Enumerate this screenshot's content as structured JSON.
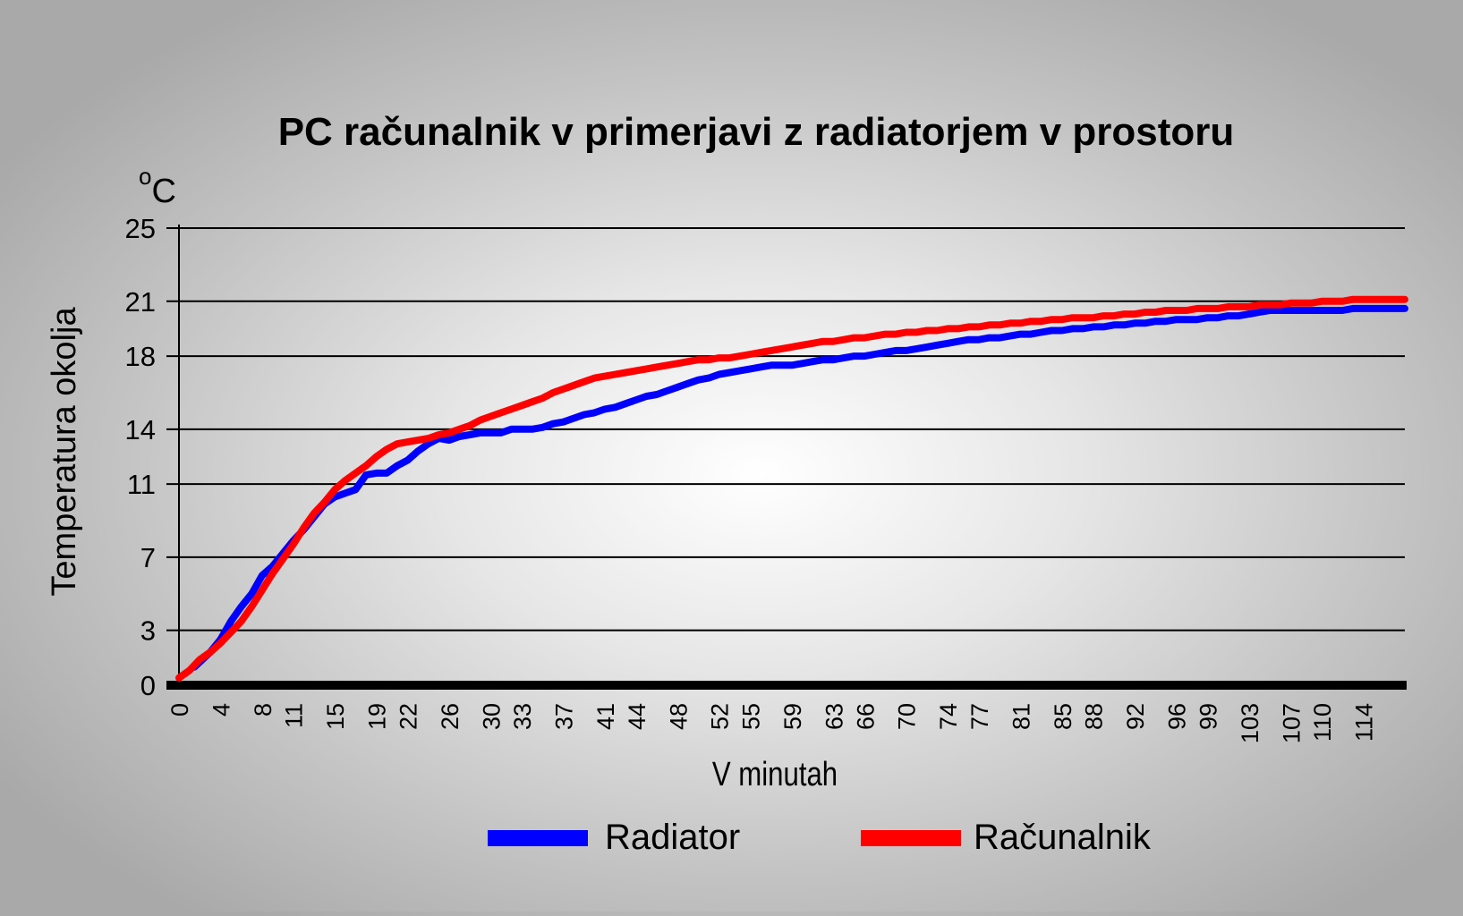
{
  "chart_data": {
    "type": "line",
    "title": "PC računalnik v primerjavi z radiatorjem v prostoru",
    "unit": {
      "sup": "o",
      "text": "C"
    },
    "ylabel": "Temperatura okolja",
    "xlabel": "V minutah",
    "ylim": [
      0,
      25
    ],
    "xlim": [
      0,
      118
    ],
    "y_ticks": [
      0,
      3,
      7,
      11,
      14,
      18,
      21,
      25
    ],
    "x_ticks": [
      0,
      4,
      8,
      11,
      15,
      19,
      22,
      26,
      30,
      33,
      37,
      41,
      44,
      48,
      52,
      55,
      59,
      63,
      66,
      70,
      74,
      77,
      81,
      85,
      88,
      92,
      96,
      99,
      103,
      107,
      110,
      114
    ],
    "grid": true,
    "legend_position": "bottom",
    "series": [
      {
        "name": "Radiator",
        "color": "#0000ff",
        "points": [
          [
            1.5,
            1.0
          ],
          [
            3,
            1.8
          ],
          [
            4,
            2.5
          ],
          [
            5,
            3.5
          ],
          [
            6,
            4.3
          ],
          [
            7,
            5.0
          ],
          [
            8,
            6.0
          ],
          [
            9,
            6.5
          ],
          [
            10,
            7.2
          ],
          [
            11,
            7.9
          ],
          [
            12,
            8.5
          ],
          [
            13,
            9.2
          ],
          [
            14,
            9.9
          ],
          [
            15,
            10.3
          ],
          [
            16,
            10.5
          ],
          [
            17,
            10.7
          ],
          [
            18,
            11.5
          ],
          [
            19,
            11.6
          ],
          [
            20,
            11.6
          ],
          [
            21,
            12.0
          ],
          [
            22,
            12.3
          ],
          [
            23,
            12.8
          ],
          [
            24,
            13.2
          ],
          [
            25,
            13.5
          ],
          [
            26,
            13.4
          ],
          [
            27,
            13.6
          ],
          [
            28,
            13.7
          ],
          [
            29,
            13.8
          ],
          [
            30,
            13.8
          ],
          [
            31,
            13.8
          ],
          [
            32,
            14.0
          ],
          [
            33,
            14.0
          ],
          [
            34,
            14.0
          ],
          [
            35,
            14.1
          ],
          [
            36,
            14.3
          ],
          [
            37,
            14.4
          ],
          [
            38,
            14.6
          ],
          [
            39,
            14.8
          ],
          [
            40,
            14.9
          ],
          [
            41,
            15.1
          ],
          [
            42,
            15.2
          ],
          [
            43,
            15.4
          ],
          [
            44,
            15.6
          ],
          [
            45,
            15.8
          ],
          [
            46,
            15.9
          ],
          [
            47,
            16.1
          ],
          [
            48,
            16.3
          ],
          [
            49,
            16.5
          ],
          [
            50,
            16.7
          ],
          [
            51,
            16.8
          ],
          [
            52,
            17.0
          ],
          [
            53,
            17.1
          ],
          [
            54,
            17.2
          ],
          [
            55,
            17.3
          ],
          [
            56,
            17.4
          ],
          [
            57,
            17.5
          ],
          [
            58,
            17.5
          ],
          [
            59,
            17.5
          ],
          [
            60,
            17.6
          ],
          [
            61,
            17.7
          ],
          [
            62,
            17.8
          ],
          [
            63,
            17.8
          ],
          [
            64,
            17.9
          ],
          [
            65,
            18.0
          ],
          [
            66,
            18.0
          ],
          [
            67,
            18.1
          ],
          [
            68,
            18.2
          ],
          [
            69,
            18.3
          ],
          [
            70,
            18.3
          ],
          [
            71,
            18.4
          ],
          [
            72,
            18.5
          ],
          [
            73,
            18.6
          ],
          [
            74,
            18.7
          ],
          [
            75,
            18.8
          ],
          [
            76,
            18.9
          ],
          [
            77,
            18.9
          ],
          [
            78,
            19.0
          ],
          [
            79,
            19.0
          ],
          [
            80,
            19.1
          ],
          [
            81,
            19.2
          ],
          [
            82,
            19.2
          ],
          [
            83,
            19.3
          ],
          [
            84,
            19.4
          ],
          [
            85,
            19.4
          ],
          [
            86,
            19.5
          ],
          [
            87,
            19.5
          ],
          [
            88,
            19.6
          ],
          [
            89,
            19.6
          ],
          [
            90,
            19.7
          ],
          [
            91,
            19.7
          ],
          [
            92,
            19.8
          ],
          [
            93,
            19.8
          ],
          [
            94,
            19.9
          ],
          [
            95,
            19.9
          ],
          [
            96,
            20.0
          ],
          [
            97,
            20.0
          ],
          [
            98,
            20.0
          ],
          [
            99,
            20.1
          ],
          [
            100,
            20.1
          ],
          [
            101,
            20.2
          ],
          [
            102,
            20.2
          ],
          [
            103,
            20.3
          ],
          [
            104,
            20.4
          ],
          [
            105,
            20.5
          ],
          [
            106,
            20.5
          ],
          [
            107,
            20.5
          ],
          [
            108,
            20.5
          ],
          [
            109,
            20.5
          ],
          [
            110,
            20.5
          ],
          [
            111,
            20.5
          ],
          [
            112,
            20.5
          ],
          [
            113,
            20.6
          ],
          [
            114,
            20.6
          ],
          [
            115,
            20.6
          ],
          [
            116,
            20.6
          ],
          [
            118,
            20.6
          ]
        ]
      },
      {
        "name": "Računalnik",
        "color": "#ff0000",
        "points": [
          [
            0,
            0.4
          ],
          [
            1,
            0.8
          ],
          [
            2,
            1.4
          ],
          [
            3,
            1.8
          ],
          [
            4,
            2.3
          ],
          [
            5,
            2.9
          ],
          [
            6,
            3.5
          ],
          [
            7,
            4.3
          ],
          [
            8,
            5.2
          ],
          [
            9,
            6.1
          ],
          [
            10,
            6.9
          ],
          [
            11,
            7.7
          ],
          [
            12,
            8.6
          ],
          [
            13,
            9.4
          ],
          [
            14,
            10.0
          ],
          [
            15,
            10.7
          ],
          [
            16,
            11.2
          ],
          [
            17,
            11.6
          ],
          [
            18,
            12.0
          ],
          [
            19,
            12.5
          ],
          [
            20,
            12.9
          ],
          [
            21,
            13.2
          ],
          [
            22,
            13.3
          ],
          [
            23,
            13.4
          ],
          [
            24,
            13.5
          ],
          [
            25,
            13.7
          ],
          [
            26,
            13.8
          ],
          [
            27,
            14.0
          ],
          [
            28,
            14.2
          ],
          [
            29,
            14.5
          ],
          [
            30,
            14.7
          ],
          [
            31,
            14.9
          ],
          [
            32,
            15.1
          ],
          [
            33,
            15.3
          ],
          [
            34,
            15.5
          ],
          [
            35,
            15.7
          ],
          [
            36,
            16.0
          ],
          [
            37,
            16.2
          ],
          [
            38,
            16.4
          ],
          [
            39,
            16.6
          ],
          [
            40,
            16.8
          ],
          [
            41,
            16.9
          ],
          [
            42,
            17.0
          ],
          [
            43,
            17.1
          ],
          [
            44,
            17.2
          ],
          [
            45,
            17.3
          ],
          [
            46,
            17.4
          ],
          [
            47,
            17.5
          ],
          [
            48,
            17.6
          ],
          [
            49,
            17.7
          ],
          [
            50,
            17.8
          ],
          [
            51,
            17.8
          ],
          [
            52,
            17.9
          ],
          [
            53,
            17.9
          ],
          [
            54,
            18.0
          ],
          [
            55,
            18.1
          ],
          [
            56,
            18.2
          ],
          [
            57,
            18.3
          ],
          [
            58,
            18.4
          ],
          [
            59,
            18.5
          ],
          [
            60,
            18.6
          ],
          [
            61,
            18.7
          ],
          [
            62,
            18.8
          ],
          [
            63,
            18.8
          ],
          [
            64,
            18.9
          ],
          [
            65,
            19.0
          ],
          [
            66,
            19.0
          ],
          [
            67,
            19.1
          ],
          [
            68,
            19.2
          ],
          [
            69,
            19.2
          ],
          [
            70,
            19.3
          ],
          [
            71,
            19.3
          ],
          [
            72,
            19.4
          ],
          [
            73,
            19.4
          ],
          [
            74,
            19.5
          ],
          [
            75,
            19.5
          ],
          [
            76,
            19.6
          ],
          [
            77,
            19.6
          ],
          [
            78,
            19.7
          ],
          [
            79,
            19.7
          ],
          [
            80,
            19.8
          ],
          [
            81,
            19.8
          ],
          [
            82,
            19.9
          ],
          [
            83,
            19.9
          ],
          [
            84,
            20.0
          ],
          [
            85,
            20.0
          ],
          [
            86,
            20.1
          ],
          [
            87,
            20.1
          ],
          [
            88,
            20.1
          ],
          [
            89,
            20.2
          ],
          [
            90,
            20.2
          ],
          [
            91,
            20.3
          ],
          [
            92,
            20.3
          ],
          [
            93,
            20.4
          ],
          [
            94,
            20.4
          ],
          [
            95,
            20.5
          ],
          [
            96,
            20.5
          ],
          [
            97,
            20.5
          ],
          [
            98,
            20.6
          ],
          [
            99,
            20.6
          ],
          [
            100,
            20.6
          ],
          [
            101,
            20.7
          ],
          [
            102,
            20.7
          ],
          [
            103,
            20.7
          ],
          [
            104,
            20.8
          ],
          [
            105,
            20.8
          ],
          [
            106,
            20.8
          ],
          [
            107,
            20.9
          ],
          [
            108,
            20.9
          ],
          [
            109,
            20.9
          ],
          [
            110,
            21.0
          ],
          [
            111,
            21.0
          ],
          [
            112,
            21.0
          ],
          [
            113,
            21.1
          ],
          [
            114,
            21.1
          ],
          [
            115,
            21.1
          ],
          [
            116,
            21.1
          ],
          [
            118,
            21.1
          ]
        ]
      }
    ]
  }
}
